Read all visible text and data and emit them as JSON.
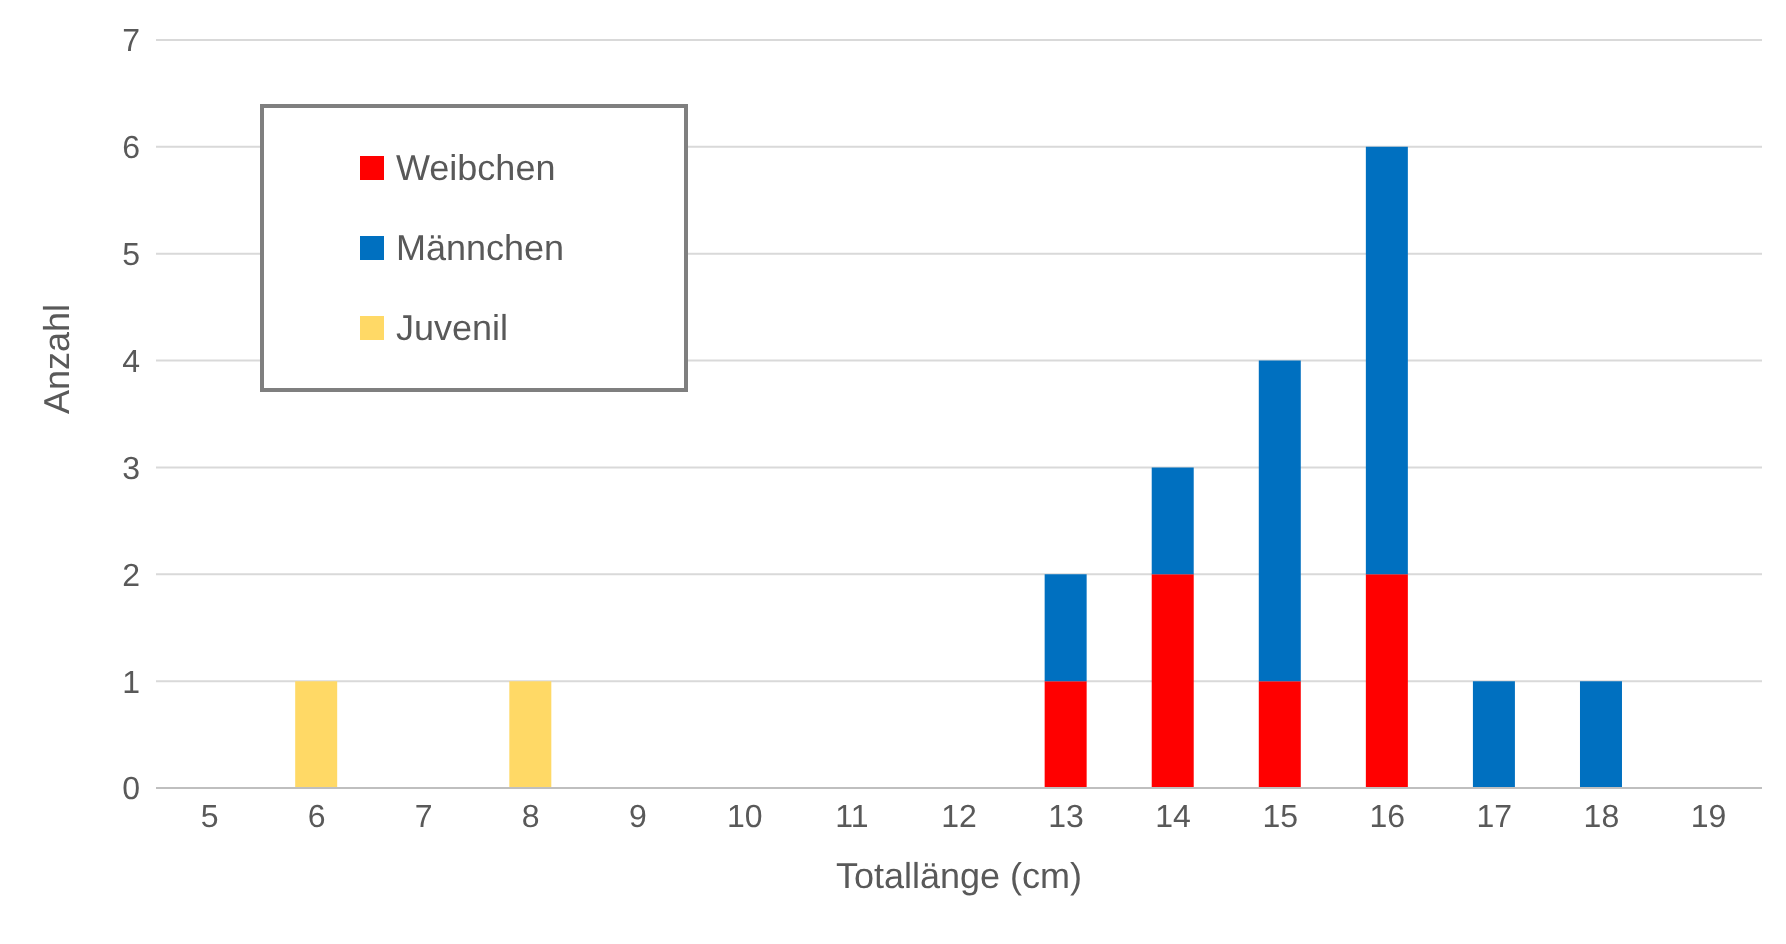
{
  "chart_data": {
    "type": "bar",
    "stacked": true,
    "xlabel": "Totallänge (cm)",
    "ylabel": "Anzahl",
    "categories": [
      "5",
      "6",
      "7",
      "8",
      "9",
      "10",
      "11",
      "12",
      "13",
      "14",
      "15",
      "16",
      "17",
      "18",
      "19"
    ],
    "series": [
      {
        "name": "Weibchen",
        "color": "#ff0000",
        "values": [
          0,
          0,
          0,
          0,
          0,
          0,
          0,
          0,
          1,
          2,
          1,
          2,
          0,
          0,
          0
        ]
      },
      {
        "name": "Männchen",
        "color": "#0070c0",
        "values": [
          0,
          0,
          0,
          0,
          0,
          0,
          0,
          0,
          1,
          1,
          3,
          4,
          1,
          1,
          0
        ]
      },
      {
        "name": "Juvenil",
        "color": "#ffd966",
        "values": [
          0,
          1,
          0,
          1,
          0,
          0,
          0,
          0,
          0,
          0,
          0,
          0,
          0,
          0,
          0
        ]
      }
    ],
    "ylim": [
      0,
      7
    ],
    "yticks": [
      0,
      1,
      2,
      3,
      4,
      5,
      6,
      7
    ],
    "grid": "y",
    "legend": "top left"
  }
}
